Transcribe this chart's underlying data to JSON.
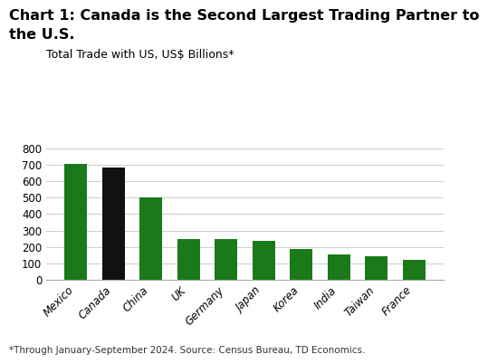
{
  "title_line1": "Chart 1: Canada is the Second Largest Trading Partner to",
  "title_line2": "the U.S.",
  "subtitle": "Total Trade with US, US$ Billions*",
  "footnote": "*Through January-September 2024. Source: Census Bureau, TD Economics.",
  "categories": [
    "Mexico",
    "Canada",
    "China",
    "UK",
    "Germany",
    "Japan",
    "Korea",
    "India",
    "Taiwan",
    "France"
  ],
  "values": [
    705,
    683,
    500,
    248,
    247,
    238,
    187,
    155,
    141,
    119
  ],
  "bar_colors": [
    "#1a7a1a",
    "#111111",
    "#1a7a1a",
    "#1a7a1a",
    "#1a7a1a",
    "#1a7a1a",
    "#1a7a1a",
    "#1a7a1a",
    "#1a7a1a",
    "#1a7a1a"
  ],
  "ylim": [
    0,
    850
  ],
  "yticks": [
    0,
    100,
    200,
    300,
    400,
    500,
    600,
    700,
    800
  ],
  "background_color": "#ffffff",
  "title_fontsize": 11.5,
  "subtitle_fontsize": 9,
  "footnote_fontsize": 7.5,
  "tick_fontsize": 8.5,
  "grid_color": "#cccccc",
  "bar_width": 0.6
}
